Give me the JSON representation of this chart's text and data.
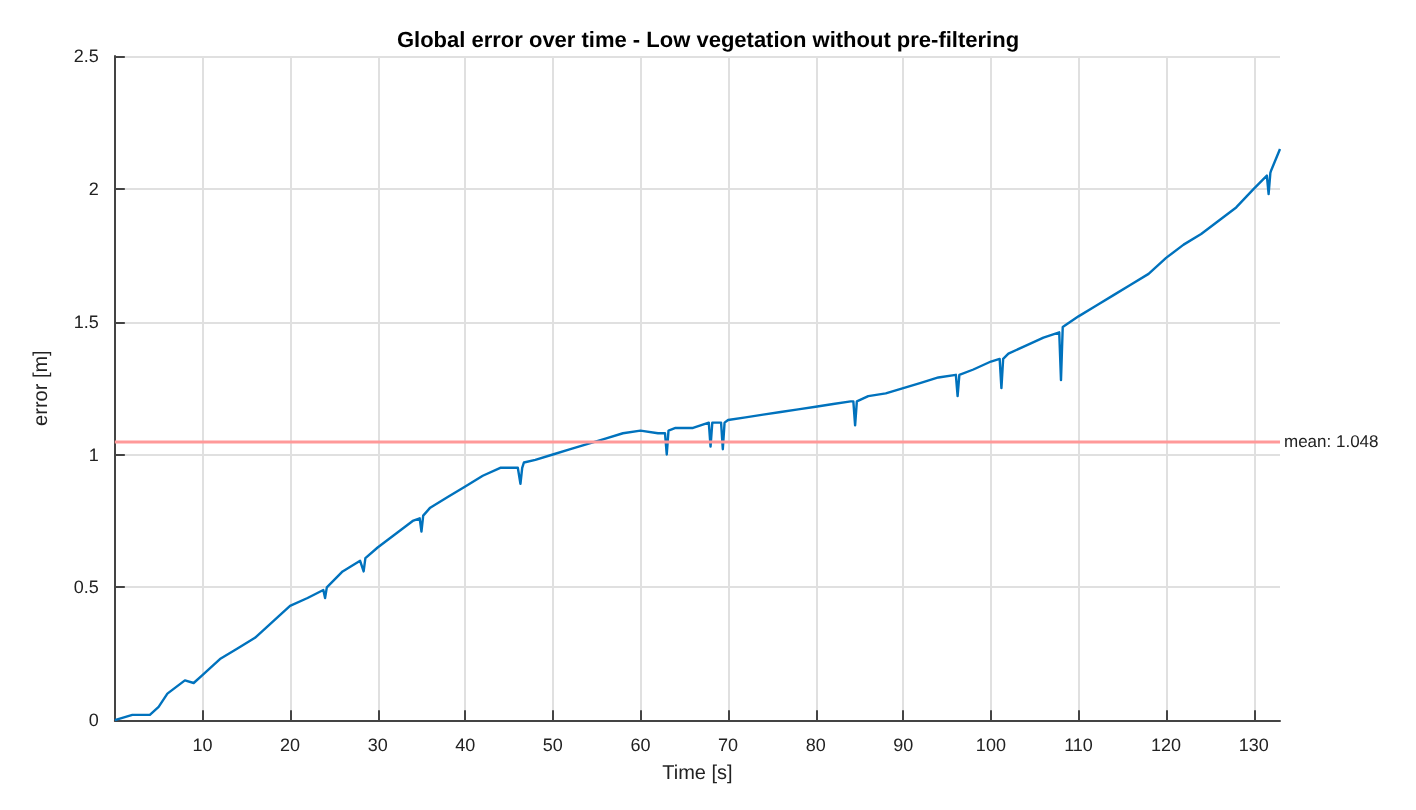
{
  "chart_data": {
    "type": "line",
    "title": "Global error over time - Low vegetation without pre-filtering",
    "xlabel": "Time [s]",
    "ylabel": "error [m]",
    "x": [
      0,
      2,
      4,
      5,
      6,
      8,
      9,
      10,
      12,
      14,
      16,
      18,
      20,
      22,
      23.8,
      24,
      24.2,
      26,
      28,
      28.4,
      28.6,
      30,
      32,
      34,
      34.8,
      35,
      35.2,
      36,
      38,
      40,
      42,
      44,
      46,
      46.3,
      46.5,
      46.7,
      48,
      50,
      52,
      54,
      56,
      58,
      60,
      62,
      62.8,
      63,
      63.2,
      64,
      66,
      67.8,
      68,
      68.2,
      69.2,
      69.4,
      69.6,
      70,
      72,
      74,
      76,
      78,
      80,
      82,
      84,
      84.3,
      84.5,
      84.7,
      86,
      88,
      90,
      92,
      94,
      96,
      96.2,
      96.4,
      98,
      100,
      101,
      101.2,
      101.4,
      102,
      104,
      106,
      107.8,
      108,
      108.2,
      110,
      112,
      114,
      116,
      118,
      120,
      122,
      124,
      126,
      128,
      130,
      131.5,
      131.7,
      131.9,
      132,
      133
    ],
    "series": [
      {
        "color": "#0072bd",
        "values": [
          0,
          0.02,
          0.02,
          0.05,
          0.1,
          0.15,
          0.14,
          0.17,
          0.23,
          0.27,
          0.31,
          0.37,
          0.43,
          0.46,
          0.49,
          0.46,
          0.5,
          0.56,
          0.6,
          0.56,
          0.61,
          0.65,
          0.7,
          0.75,
          0.76,
          0.71,
          0.77,
          0.8,
          0.84,
          0.88,
          0.92,
          0.95,
          0.95,
          0.89,
          0.95,
          0.97,
          0.98,
          1.0,
          1.02,
          1.04,
          1.06,
          1.08,
          1.09,
          1.08,
          1.08,
          1.0,
          1.09,
          1.1,
          1.1,
          1.12,
          1.03,
          1.12,
          1.12,
          1.02,
          1.12,
          1.13,
          1.14,
          1.15,
          1.16,
          1.17,
          1.18,
          1.19,
          1.2,
          1.2,
          1.11,
          1.2,
          1.22,
          1.23,
          1.25,
          1.27,
          1.29,
          1.3,
          1.22,
          1.3,
          1.32,
          1.35,
          1.36,
          1.25,
          1.36,
          1.38,
          1.41,
          1.44,
          1.46,
          1.28,
          1.48,
          1.52,
          1.56,
          1.6,
          1.64,
          1.68,
          1.74,
          1.79,
          1.83,
          1.88,
          1.93,
          2.0,
          2.05,
          1.98,
          2.06,
          2.07,
          2.15
        ]
      }
    ],
    "xlim": [
      0,
      133
    ],
    "xticks": [
      10,
      20,
      30,
      40,
      50,
      60,
      70,
      80,
      90,
      100,
      110,
      120,
      130
    ],
    "ylim": [
      0,
      2.5
    ],
    "yticks": [
      0,
      0.5,
      1,
      1.5,
      2,
      2.5
    ],
    "grid": true,
    "marker": "none",
    "line_style": "solid",
    "ref_lines": [
      {
        "axis": "y",
        "value": 1.048,
        "label": "mean: 1.048",
        "color": "#ff9999"
      }
    ]
  }
}
